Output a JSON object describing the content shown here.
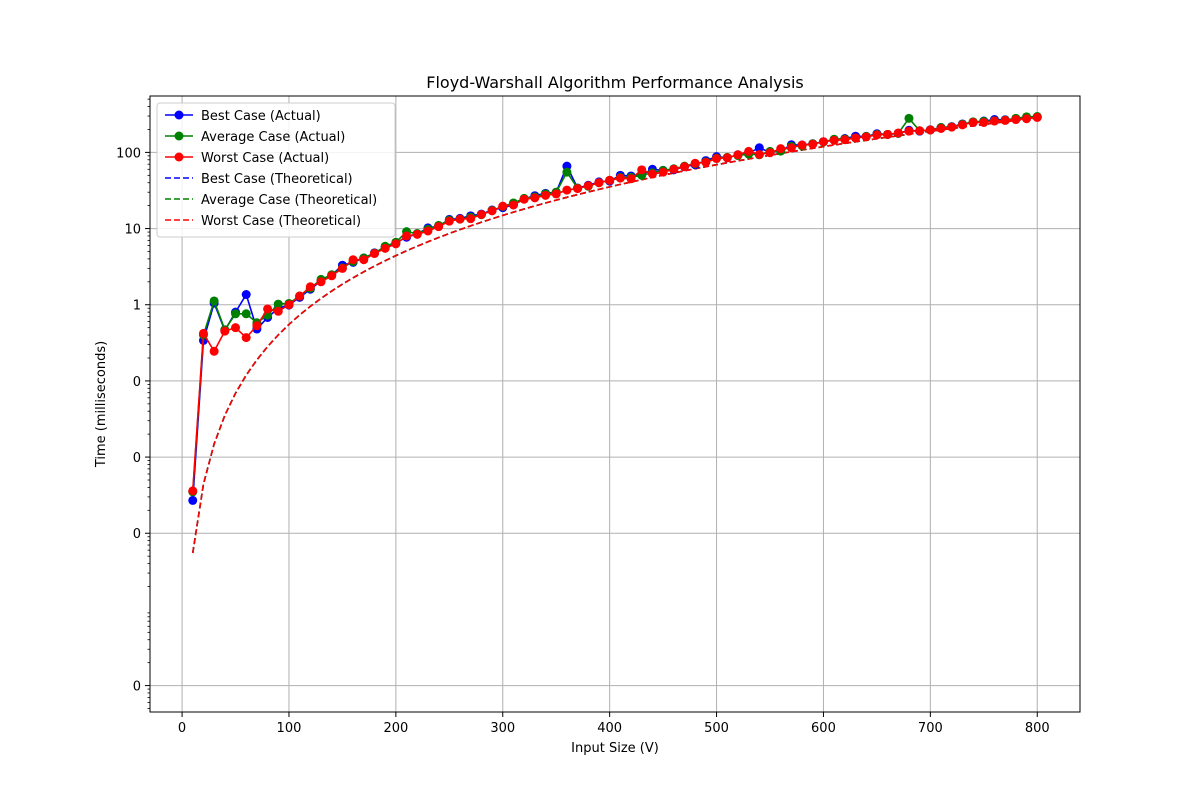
{
  "chart_data": {
    "type": "line",
    "title": "Floyd-Warshall Algorithm Performance Analysis",
    "xlabel": "Input Size (V)",
    "ylabel": "Time (milliseconds)",
    "y_scale": "log",
    "xlim": [
      -30,
      840
    ],
    "ylim": [
      4.5e-06,
      550
    ],
    "grid": true,
    "legend_position": "top-left",
    "x_ticks": [
      0,
      100,
      200,
      300,
      400,
      500,
      600,
      700,
      800
    ],
    "y_ticks": [
      {
        "value": 1e-05,
        "label": "0"
      },
      {
        "value": 0.001,
        "label": "0"
      },
      {
        "value": 0.01,
        "label": "0"
      },
      {
        "value": 0.1,
        "label": "0"
      },
      {
        "value": 1,
        "label": "1"
      },
      {
        "value": 10,
        "label": "10"
      },
      {
        "value": 100,
        "label": "100"
      }
    ],
    "x": [
      10,
      20,
      30,
      40,
      50,
      60,
      70,
      80,
      90,
      100,
      110,
      120,
      130,
      140,
      150,
      160,
      170,
      180,
      190,
      200,
      210,
      220,
      230,
      240,
      250,
      260,
      270,
      280,
      290,
      300,
      310,
      320,
      330,
      340,
      350,
      360,
      370,
      380,
      390,
      400,
      410,
      420,
      430,
      440,
      450,
      460,
      470,
      480,
      490,
      500,
      510,
      520,
      530,
      540,
      550,
      560,
      570,
      580,
      590,
      600,
      610,
      620,
      630,
      640,
      650,
      660,
      670,
      680,
      690,
      700,
      710,
      720,
      730,
      740,
      750,
      760,
      770,
      780,
      790,
      800
    ],
    "series": [
      {
        "name": "Best Case (Actual)",
        "color": "#0000ff",
        "style": "solid-marker",
        "values": [
          0.0027,
          0.34,
          1.05,
          0.46,
          0.8,
          1.36,
          0.48,
          0.68,
          0.9,
          0.99,
          1.25,
          1.6,
          2.05,
          2.45,
          3.3,
          3.6,
          4.1,
          4.8,
          5.7,
          6.5,
          7.7,
          8.5,
          10.2,
          10.8,
          13.2,
          13.6,
          14.7,
          15.5,
          17.5,
          18.8,
          20.5,
          24.5,
          27,
          29,
          30,
          66,
          34,
          37,
          41,
          42,
          50,
          49,
          51,
          60,
          58,
          59,
          65,
          69,
          78,
          88,
          85,
          93,
          98,
          115,
          100,
          105,
          126,
          125,
          130,
          138,
          147,
          152,
          163,
          162,
          176,
          172,
          178,
          195,
          190,
          198,
          212,
          218,
          236,
          248,
          258,
          270,
          268,
          275,
          284,
          290
        ]
      },
      {
        "name": "Average Case (Actual)",
        "color": "#008000",
        "style": "solid-marker",
        "values": [
          0.0035,
          0.4,
          1.12,
          0.47,
          0.76,
          0.76,
          0.58,
          0.73,
          1.02,
          1.04,
          1.3,
          1.65,
          2.15,
          2.48,
          3.05,
          3.7,
          4.1,
          4.75,
          5.85,
          6.6,
          9.1,
          8.6,
          9.8,
          11,
          12.9,
          13.3,
          14.1,
          15.2,
          17.3,
          19.5,
          21.7,
          24.9,
          26,
          28.5,
          30,
          55,
          34,
          36,
          40,
          43,
          47,
          47,
          50,
          54,
          58,
          61,
          66,
          71,
          75,
          84,
          86,
          91,
          95,
          93,
          103,
          104,
          120,
          122,
          130,
          137,
          149,
          150,
          155,
          162,
          172,
          172,
          178,
          280,
          192,
          197,
          212,
          216,
          234,
          252,
          255,
          260,
          265,
          280,
          293,
          296
        ]
      },
      {
        "name": "Worst Case (Actual)",
        "color": "#ff0000",
        "style": "solid-marker",
        "values": [
          0.0036,
          0.42,
          0.245,
          0.45,
          0.5,
          0.37,
          0.53,
          0.88,
          0.82,
          1.0,
          1.3,
          1.72,
          2.0,
          2.4,
          3.0,
          3.9,
          3.9,
          4.7,
          5.5,
          6.3,
          8.0,
          8.4,
          9.3,
          10.6,
          12.5,
          13.3,
          13.5,
          15.3,
          17.1,
          19.7,
          20.4,
          24.3,
          25.3,
          27.3,
          28.5,
          32,
          33.5,
          36.5,
          40,
          43,
          46,
          45,
          59,
          52,
          55,
          60,
          65,
          72,
          74,
          83,
          85,
          93,
          103,
          94,
          99,
          112,
          115,
          125,
          128,
          138,
          144,
          147,
          155,
          160,
          170,
          172,
          180,
          190,
          192,
          197,
          206,
          215,
          230,
          247,
          247,
          258,
          263,
          270,
          277,
          288
        ]
      },
      {
        "name": "Best Case (Theoretical)",
        "color": "#0000ff",
        "style": "dashed",
        "values": [
          0.000551,
          0.00441,
          0.01489,
          0.03529,
          0.06893,
          0.1191,
          0.1891,
          0.2823,
          0.4019,
          0.5513,
          0.7338,
          0.9526,
          1.211,
          1.513,
          1.861,
          2.258,
          2.708,
          3.215,
          3.781,
          4.41,
          5.106,
          5.871,
          6.708,
          7.622,
          8.614,
          9.69,
          10.85,
          12.1,
          13.45,
          14.89,
          16.42,
          18.06,
          19.81,
          21.67,
          23.64,
          25.72,
          27.92,
          30.25,
          32.7,
          35.29,
          38,
          40.85,
          43.85,
          46.98,
          50.26,
          53.69,
          57.28,
          61.02,
          64.92,
          68.93,
          73.12,
          77.53,
          82.06,
          86.79,
          91.74,
          96.82,
          102.08,
          107.6,
          113.19,
          119.07,
          125.16,
          131.35,
          137.8,
          144.47,
          151.34,
          158.41,
          165.7,
          173.31,
          180.98,
          189.08,
          197.33,
          205.81,
          214.54,
          223.51,
          232.74,
          242.21,
          251.94,
          261.91,
          272.17,
          282.37
        ]
      },
      {
        "name": "Average Case (Theoretical)",
        "color": "#008000",
        "style": "dashed",
        "values": [
          0.000551,
          0.00441,
          0.01489,
          0.03529,
          0.06893,
          0.1191,
          0.1891,
          0.2823,
          0.4019,
          0.5513,
          0.7338,
          0.9526,
          1.211,
          1.513,
          1.861,
          2.258,
          2.708,
          3.215,
          3.781,
          4.41,
          5.106,
          5.871,
          6.708,
          7.622,
          8.614,
          9.69,
          10.85,
          12.1,
          13.45,
          14.89,
          16.42,
          18.06,
          19.81,
          21.67,
          23.64,
          25.72,
          27.92,
          30.25,
          32.7,
          35.29,
          38,
          40.85,
          43.85,
          46.98,
          50.26,
          53.69,
          57.28,
          61.02,
          64.92,
          68.93,
          73.12,
          77.53,
          82.06,
          86.79,
          91.74,
          96.82,
          102.08,
          107.6,
          113.19,
          119.07,
          125.16,
          131.35,
          137.8,
          144.47,
          151.34,
          158.41,
          165.7,
          173.31,
          180.98,
          189.08,
          197.33,
          205.81,
          214.54,
          223.51,
          232.74,
          242.21,
          251.94,
          261.91,
          272.17,
          282.37
        ]
      },
      {
        "name": "Worst Case (Theoretical)",
        "color": "#ff0000",
        "style": "dashed",
        "values": [
          0.000551,
          0.00441,
          0.01489,
          0.03529,
          0.06893,
          0.1191,
          0.1891,
          0.2823,
          0.4019,
          0.5513,
          0.7338,
          0.9526,
          1.211,
          1.513,
          1.861,
          2.258,
          2.708,
          3.215,
          3.781,
          4.41,
          5.106,
          5.871,
          6.708,
          7.622,
          8.614,
          9.69,
          10.85,
          12.1,
          13.45,
          14.89,
          16.42,
          18.06,
          19.81,
          21.67,
          23.64,
          25.72,
          27.92,
          30.25,
          32.7,
          35.29,
          38,
          40.85,
          43.85,
          46.98,
          50.26,
          53.69,
          57.28,
          61.02,
          64.92,
          68.93,
          73.12,
          77.53,
          82.06,
          86.79,
          91.74,
          96.82,
          102.08,
          107.6,
          113.19,
          119.07,
          125.16,
          131.35,
          137.8,
          144.47,
          151.34,
          158.41,
          165.7,
          173.31,
          180.98,
          189.08,
          197.33,
          205.81,
          214.54,
          223.51,
          232.74,
          242.21,
          251.94,
          261.91,
          272.17,
          282.37
        ]
      }
    ]
  }
}
